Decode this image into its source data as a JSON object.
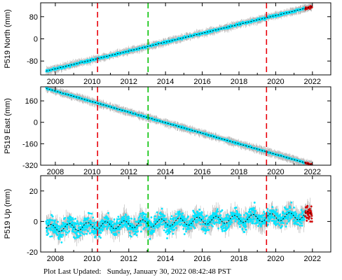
{
  "footer": {
    "label": "Plot Last Updated:",
    "timestamp": "Sunday, January 30, 2022 08:42:48 PST"
  },
  "colors": {
    "data_cyan": "#00e5ff",
    "error_gray": "#b4b4b4",
    "model_black": "#000000",
    "recent_red": "#d40000",
    "equipment_red": "#e8000b",
    "equipment_green": "#00c000",
    "frame": "#000000"
  },
  "chart_data": [
    {
      "type": "scatter",
      "ylabel": "P519 North (mm)",
      "xlabel": "",
      "xlim": [
        2007.2,
        2023.0
      ],
      "ylim": [
        -130,
        130
      ],
      "xticks": [
        2008,
        2010,
        2012,
        2014,
        2016,
        2018,
        2020,
        2022
      ],
      "yticks": [
        -80,
        0,
        80
      ],
      "grid": false,
      "trend": {
        "x": [
          2007.5,
          2021.98
        ],
        "y": [
          -116,
          116
        ]
      },
      "scatter_sd": 3,
      "vlines": [
        {
          "x": 2010.3,
          "color": "red"
        },
        {
          "x": 2013.05,
          "color": "green"
        },
        {
          "x": 2019.5,
          "color": "red"
        }
      ]
    },
    {
      "type": "scatter",
      "ylabel": "P519 East (mm)",
      "xlabel": "",
      "xlim": [
        2007.2,
        2023.0
      ],
      "ylim": [
        -320,
        265
      ],
      "xticks": [
        2008,
        2010,
        2012,
        2014,
        2016,
        2018,
        2020,
        2022
      ],
      "yticks": [
        -320,
        -160,
        0,
        160
      ],
      "grid": false,
      "trend": {
        "x": [
          2007.5,
          2021.98
        ],
        "y": [
          253,
          -317
        ]
      },
      "scatter_sd": 4,
      "vlines": [
        {
          "x": 2010.3,
          "color": "red"
        },
        {
          "x": 2013.05,
          "color": "green"
        },
        {
          "x": 2019.5,
          "color": "red"
        }
      ]
    },
    {
      "type": "scatter",
      "ylabel": "P519 Up (mm)",
      "xlabel": "",
      "xlim": [
        2007.2,
        2023.0
      ],
      "ylim": [
        -20,
        30
      ],
      "xticks": [
        2008,
        2010,
        2012,
        2014,
        2016,
        2018,
        2020,
        2022
      ],
      "yticks": [
        -20,
        0,
        20
      ],
      "grid": false,
      "trend": {
        "x": [
          2007.5,
          2021.98
        ],
        "y": [
          -4.5,
          4.0
        ]
      },
      "seasonal_amplitude": 2.5,
      "scatter_sd": 4,
      "vlines": [
        {
          "x": 2010.3,
          "color": "red"
        },
        {
          "x": 2013.05,
          "color": "green"
        },
        {
          "x": 2019.5,
          "color": "red"
        }
      ]
    }
  ]
}
